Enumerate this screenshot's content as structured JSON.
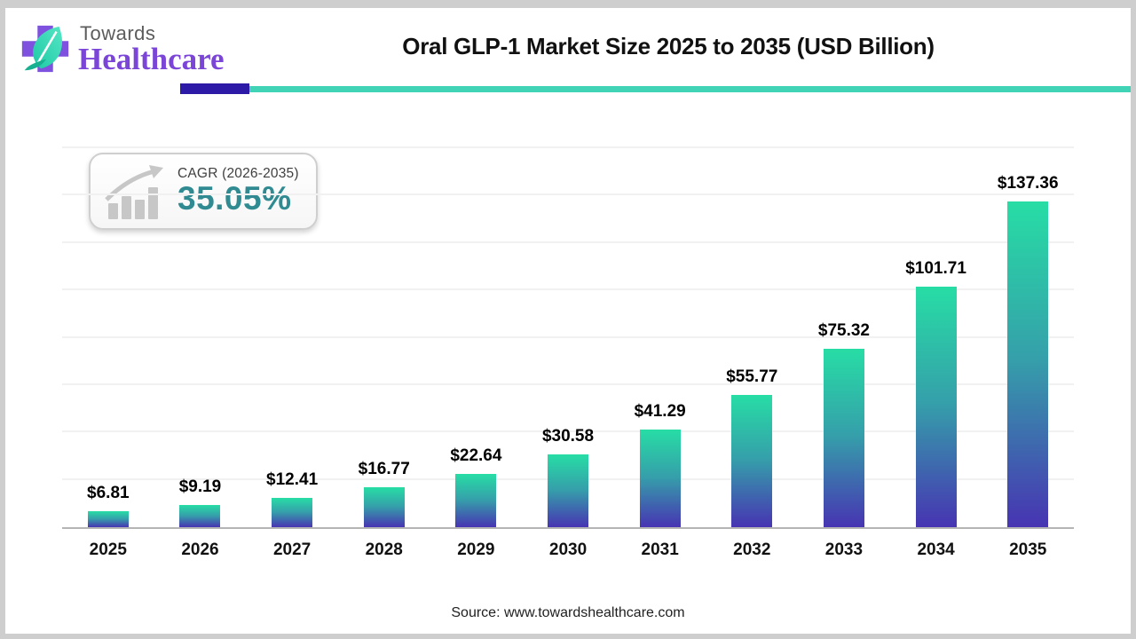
{
  "page": {
    "frame_color": "#cecece",
    "card_background": "#ffffff"
  },
  "header": {
    "logo": {
      "line1": "Towards",
      "line2": "Healthcare",
      "cross_color": "#7e52de",
      "leaf_color_light": "#55e6c4",
      "leaf_color_dark": "#1ec9a6",
      "line1_color": "#5c5c5c",
      "line2_color": "#7b46d8"
    },
    "title": "Oral GLP-1 Market Size 2025 to 2035 (USD Billion)",
    "underline": {
      "purple": "#2d1ba7",
      "teal": "#41d3b6"
    }
  },
  "cagr_badge": {
    "icon": "bar-chart-rising-arrow-icon",
    "icon_color": "#c7c7c7",
    "label": "CAGR (2026-2035)",
    "value": "35.05%",
    "value_color": "#2f8b91"
  },
  "chart_data": {
    "type": "bar",
    "title": "Oral GLP-1 Market Size 2025 to 2035 (USD Billion)",
    "unit": "USD Billion",
    "categories": [
      "2025",
      "2026",
      "2027",
      "2028",
      "2029",
      "2030",
      "2031",
      "2032",
      "2033",
      "2034",
      "2035"
    ],
    "values": [
      6.81,
      9.19,
      12.41,
      16.77,
      22.64,
      30.58,
      41.29,
      55.77,
      75.32,
      101.71,
      137.36
    ],
    "value_labels": [
      "$6.81",
      "$9.19",
      "$12.41",
      "$16.77",
      "$22.64",
      "$30.58",
      "$41.29",
      "$55.77",
      "$75.32",
      "$101.71",
      "$137.36"
    ],
    "xlabel": "",
    "ylabel": "",
    "ylim": [
      0,
      160
    ],
    "gridline_step": 20,
    "grid": true,
    "legend": false,
    "grid_color": "#f1f1f1",
    "axis_color": "#b5b5b5",
    "bar_gradient_top": "#27dda5",
    "bar_gradient_mid": "#35a0aa",
    "bar_gradient_bottom": "#4734b2"
  },
  "footer": {
    "source": "Source: www.towardshealthcare.com"
  }
}
